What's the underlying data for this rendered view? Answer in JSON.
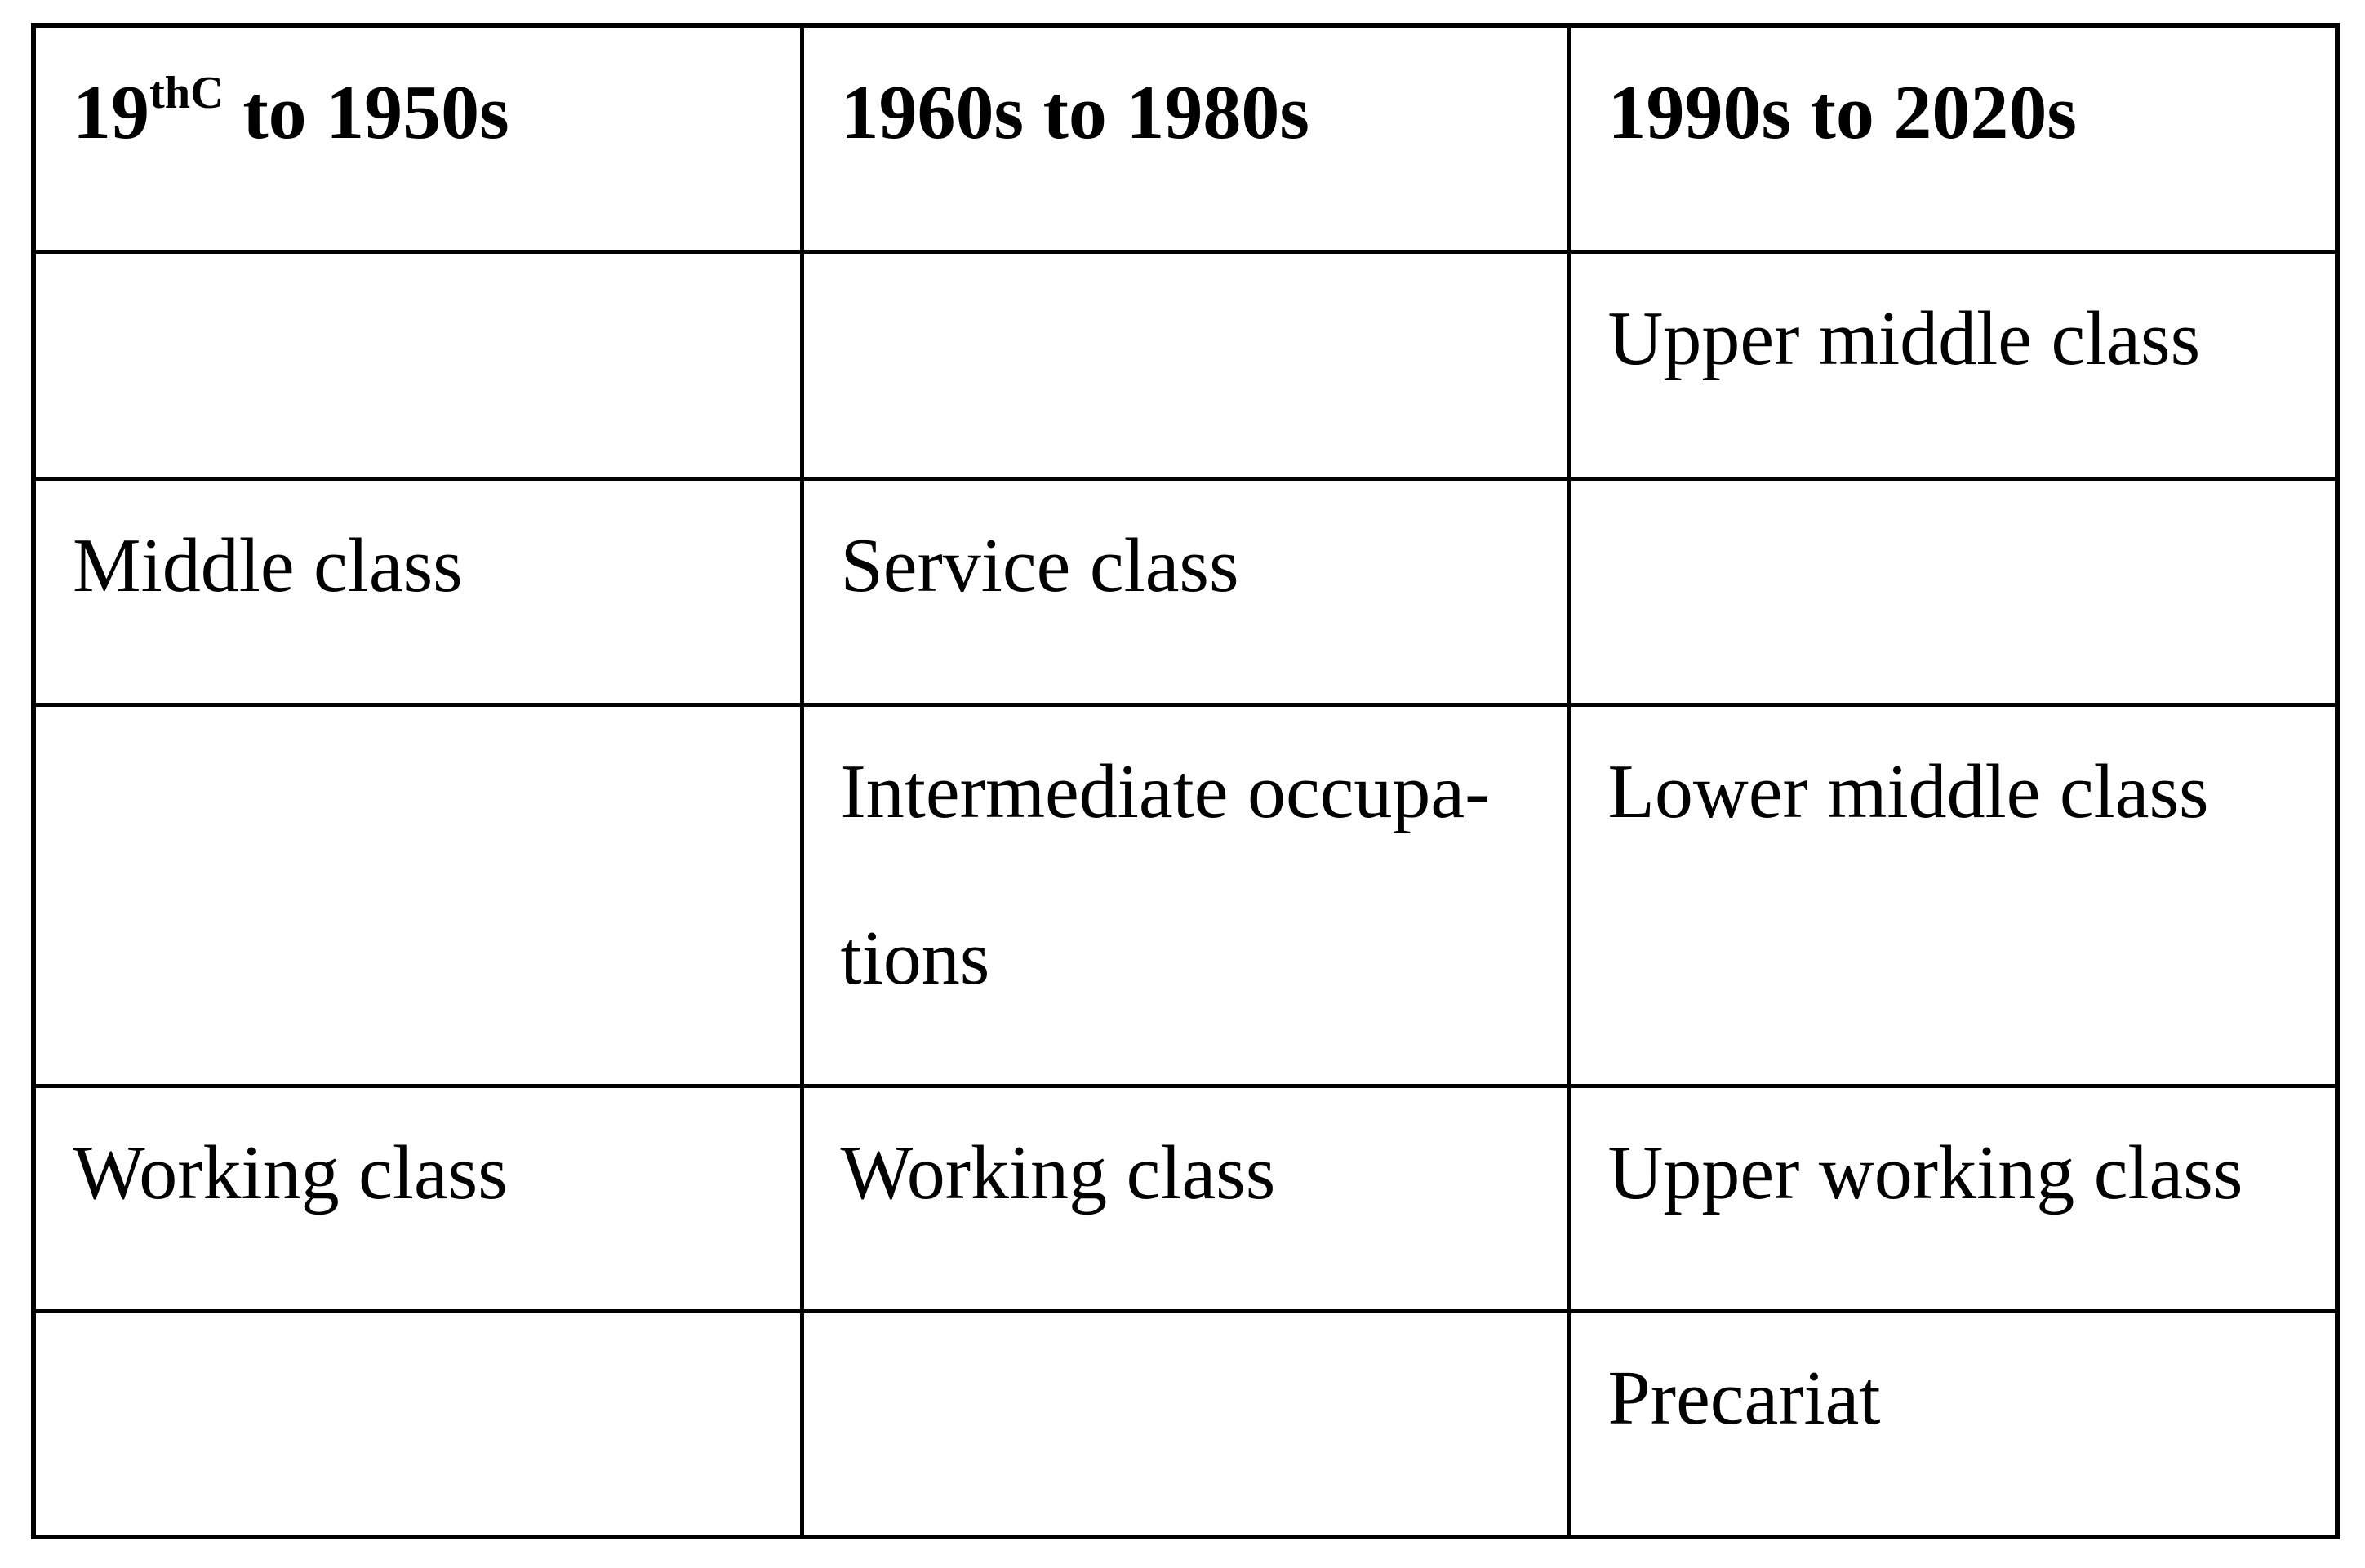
{
  "colors": {
    "background": "#ffffff",
    "text": "#000000",
    "border": "#000000"
  },
  "table": {
    "headers": {
      "col1": {
        "base": "19",
        "sup": "thC",
        "rest": " to 1950s"
      },
      "col2": "1960s to 1980s",
      "col3": "1990s to 2020s"
    },
    "rows": [
      [
        "",
        "",
        "Upper middle class"
      ],
      [
        "Middle class",
        "Service class",
        ""
      ],
      [
        "",
        "Intermediate occupa-\ntions",
        "Lower middle class"
      ],
      [
        "Working class",
        "Working class",
        "Upper working class"
      ],
      [
        "",
        "",
        "Precariat"
      ]
    ]
  }
}
